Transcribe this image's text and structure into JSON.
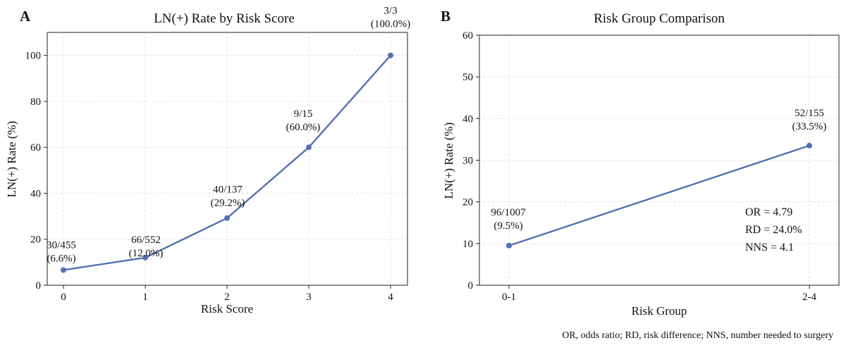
{
  "chart_data": [
    {
      "type": "line",
      "panel_label": "A",
      "title": "LN(+) Rate by Risk Score",
      "xlabel": "Risk Score",
      "ylabel": "LN(+) Rate (%)",
      "x": [
        0,
        1,
        2,
        3,
        4
      ],
      "x_ticks": [
        "0",
        "1",
        "2",
        "3",
        "4"
      ],
      "ylim": [
        0,
        110
      ],
      "y_ticks": [
        "0",
        "20",
        "40",
        "60",
        "80",
        "100"
      ],
      "grid": true,
      "color": "#5470b4",
      "series": [
        {
          "values": [
            6.6,
            12.0,
            29.2,
            60.0,
            100.0
          ]
        }
      ],
      "point_labels": [
        [
          "30/455",
          "(6.6%)"
        ],
        [
          "66/552",
          "(12.0%)"
        ],
        [
          "40/137",
          "(29.2%)"
        ],
        [
          "9/15",
          "(60.0%)"
        ],
        [
          "3/3",
          "(100.0%)"
        ]
      ]
    },
    {
      "type": "line",
      "panel_label": "B",
      "title": "Risk Group Comparison",
      "xlabel": "Risk Group",
      "ylabel": "LN(+) Rate (%)",
      "categories": [
        "0-1",
        "2-4"
      ],
      "ylim": [
        0,
        60
      ],
      "y_ticks": [
        "0",
        "10",
        "20",
        "30",
        "40",
        "50",
        "60"
      ],
      "grid": true,
      "color": "#5470b4",
      "series": [
        {
          "values": [
            9.5,
            33.5
          ]
        }
      ],
      "point_labels": [
        [
          "96/1007",
          "(9.5%)"
        ],
        [
          "52/155",
          "(33.5%)"
        ]
      ],
      "annotations": [
        "OR = 4.79",
        "RD = 24.0%",
        "NNS = 4.1"
      ]
    }
  ],
  "footnote": "OR, odds ratio; RD, risk difference; NNS, number needed to surgery"
}
